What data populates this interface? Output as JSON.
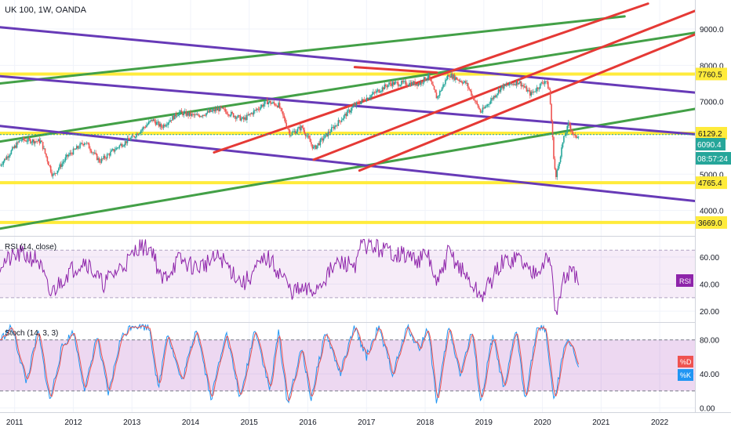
{
  "title": "UK 100, 1W, OANDA",
  "colors": {
    "green": "#43a047",
    "purple": "#673ab7",
    "red": "#e53935",
    "yellow": "#ffeb3b",
    "rsi": "#8e24aa",
    "stochK": "#2196f3",
    "stochD": "#ef5350",
    "teal": "#26a69a",
    "bull": "#26a69a",
    "bear": "#ef5350",
    "dark": "#131722"
  },
  "price_axis": {
    "ticks": [
      "4000.0",
      "5000.0",
      "6000.0",
      "7000.0",
      "8000.0",
      "9000.0"
    ]
  },
  "level_labels": [
    "7760.5",
    "6129.2",
    "4765.4",
    "3669.0"
  ],
  "last_price": "6090.4",
  "countdown": "08:57:24",
  "rsi": {
    "title": "RSI (14, close)",
    "badge": "RSI",
    "ticks": [
      "20.00",
      "40.00",
      "60.00"
    ]
  },
  "stoch": {
    "title": "Stoch (14, 3, 3)",
    "badge_d": "%D",
    "badge_k": "%K",
    "ticks": [
      "0.00",
      "40.00",
      "80.00"
    ]
  },
  "time_axis": [
    "2011",
    "2012",
    "2013",
    "2014",
    "2015",
    "2016",
    "2017",
    "2018",
    "2019",
    "2020",
    "2021",
    "2022"
  ],
  "chart_data": {
    "type": "candlestick",
    "title": "UK 100, 1W, OANDA",
    "x_range": [
      2010.75,
      2022.6
    ],
    "price_ylim": [
      3300,
      9800
    ],
    "horizontal_levels": [
      7760.5,
      6129.2,
      4765.4,
      3669.0
    ],
    "price_path": [
      [
        2010.75,
        5250
      ],
      [
        2011.1,
        5950
      ],
      [
        2011.45,
        5900
      ],
      [
        2011.65,
        4950
      ],
      [
        2011.9,
        5500
      ],
      [
        2012.2,
        5900
      ],
      [
        2012.45,
        5350
      ],
      [
        2012.8,
        5800
      ],
      [
        2013.0,
        6000
      ],
      [
        2013.35,
        6500
      ],
      [
        2013.5,
        6300
      ],
      [
        2013.8,
        6700
      ],
      [
        2014.1,
        6600
      ],
      [
        2014.5,
        6800
      ],
      [
        2014.9,
        6500
      ],
      [
        2015.3,
        7000
      ],
      [
        2015.5,
        6900
      ],
      [
        2015.7,
        6100
      ],
      [
        2015.9,
        6300
      ],
      [
        2016.1,
        5700
      ],
      [
        2016.5,
        6400
      ],
      [
        2016.8,
        6900
      ],
      [
        2017.0,
        7100
      ],
      [
        2017.4,
        7500
      ],
      [
        2017.9,
        7500
      ],
      [
        2018.05,
        7700
      ],
      [
        2018.2,
        7100
      ],
      [
        2018.4,
        7750
      ],
      [
        2018.7,
        7500
      ],
      [
        2018.95,
        6700
      ],
      [
        2019.3,
        7400
      ],
      [
        2019.6,
        7550
      ],
      [
        2019.8,
        7200
      ],
      [
        2020.05,
        7600
      ],
      [
        2020.12,
        7300
      ],
      [
        2020.2,
        5300
      ],
      [
        2020.23,
        4900
      ],
      [
        2020.35,
        5900
      ],
      [
        2020.45,
        6400
      ],
      [
        2020.55,
        6000
      ],
      [
        2020.62,
        6100
      ]
    ],
    "trendlines": [
      {
        "color": "green",
        "points": [
          [
            2010.75,
            7500
          ],
          [
            2021.4,
            9350
          ]
        ]
      },
      {
        "color": "green",
        "points": [
          [
            2010.75,
            5900
          ],
          [
            2022.6,
            8900
          ]
        ]
      },
      {
        "color": "green",
        "points": [
          [
            2010.75,
            3500
          ],
          [
            2022.6,
            6800
          ]
        ]
      },
      {
        "color": "purple",
        "points": [
          [
            2010.75,
            9050
          ],
          [
            2022.6,
            7250
          ]
        ]
      },
      {
        "color": "purple",
        "points": [
          [
            2010.75,
            7700
          ],
          [
            2022.6,
            6100
          ]
        ]
      },
      {
        "color": "purple",
        "points": [
          [
            2010.75,
            6330
          ],
          [
            2022.6,
            4260
          ]
        ]
      },
      {
        "color": "red",
        "points": [
          [
            2014.4,
            5600
          ],
          [
            2021.8,
            9700
          ]
        ]
      },
      {
        "color": "red",
        "points": [
          [
            2016.1,
            5400
          ],
          [
            2022.6,
            9500
          ]
        ]
      },
      {
        "color": "red",
        "points": [
          [
            2016.88,
            5100
          ],
          [
            2022.6,
            8850
          ]
        ]
      },
      {
        "color": "red",
        "points": [
          [
            2016.8,
            7950
          ],
          [
            2018.2,
            7800
          ]
        ]
      }
    ],
    "rsi": {
      "ylim": [
        12,
        75
      ],
      "band": [
        30,
        65
      ],
      "path": [
        [
          2010.75,
          55
        ],
        [
          2011.1,
          62
        ],
        [
          2011.4,
          58
        ],
        [
          2011.6,
          32
        ],
        [
          2011.9,
          48
        ],
        [
          2012.2,
          58
        ],
        [
          2012.5,
          40
        ],
        [
          2012.8,
          52
        ],
        [
          2013.0,
          60
        ],
        [
          2013.1,
          68
        ],
        [
          2013.35,
          66
        ],
        [
          2013.5,
          42
        ],
        [
          2013.8,
          58
        ],
        [
          2014.1,
          52
        ],
        [
          2014.5,
          60
        ],
        [
          2014.9,
          40
        ],
        [
          2015.3,
          60
        ],
        [
          2015.6,
          44
        ],
        [
          2015.7,
          35
        ],
        [
          2016.1,
          35
        ],
        [
          2016.5,
          55
        ],
        [
          2016.85,
          55
        ],
        [
          2016.9,
          70
        ],
        [
          2017.4,
          64
        ],
        [
          2017.9,
          58
        ],
        [
          2018.05,
          62
        ],
        [
          2018.2,
          38
        ],
        [
          2018.4,
          64
        ],
        [
          2018.95,
          30
        ],
        [
          2019.3,
          55
        ],
        [
          2019.6,
          60
        ],
        [
          2019.8,
          48
        ],
        [
          2020.05,
          58
        ],
        [
          2020.15,
          55
        ],
        [
          2020.23,
          17
        ],
        [
          2020.35,
          42
        ],
        [
          2020.45,
          48
        ],
        [
          2020.62,
          45
        ]
      ]
    },
    "stochastic": {
      "ylim": [
        -5,
        100
      ],
      "band": [
        20,
        80
      ],
      "k_path": [
        [
          2010.75,
          80
        ],
        [
          2010.95,
          95
        ],
        [
          2011.2,
          30
        ],
        [
          2011.4,
          90
        ],
        [
          2011.6,
          8
        ],
        [
          2011.8,
          70
        ],
        [
          2012.0,
          90
        ],
        [
          2012.2,
          20
        ],
        [
          2012.4,
          85
        ],
        [
          2012.6,
          15
        ],
        [
          2012.8,
          80
        ],
        [
          2013.0,
          98
        ],
        [
          2013.3,
          95
        ],
        [
          2013.45,
          20
        ],
        [
          2013.6,
          90
        ],
        [
          2013.85,
          30
        ],
        [
          2014.1,
          95
        ],
        [
          2014.35,
          10
        ],
        [
          2014.6,
          90
        ],
        [
          2014.85,
          10
        ],
        [
          2015.1,
          95
        ],
        [
          2015.35,
          20
        ],
        [
          2015.5,
          90
        ],
        [
          2015.65,
          5
        ],
        [
          2015.9,
          70
        ],
        [
          2016.05,
          10
        ],
        [
          2016.3,
          90
        ],
        [
          2016.55,
          40
        ],
        [
          2016.8,
          95
        ],
        [
          2017.0,
          60
        ],
        [
          2017.2,
          95
        ],
        [
          2017.45,
          40
        ],
        [
          2017.7,
          95
        ],
        [
          2017.9,
          70
        ],
        [
          2018.05,
          95
        ],
        [
          2018.2,
          5
        ],
        [
          2018.4,
          95
        ],
        [
          2018.6,
          40
        ],
        [
          2018.8,
          90
        ],
        [
          2018.95,
          5
        ],
        [
          2019.15,
          85
        ],
        [
          2019.35,
          20
        ],
        [
          2019.55,
          95
        ],
        [
          2019.7,
          10
        ],
        [
          2019.9,
          90
        ],
        [
          2020.05,
          95
        ],
        [
          2020.2,
          5
        ],
        [
          2020.4,
          80
        ],
        [
          2020.5,
          75
        ],
        [
          2020.62,
          42
        ]
      ]
    }
  }
}
